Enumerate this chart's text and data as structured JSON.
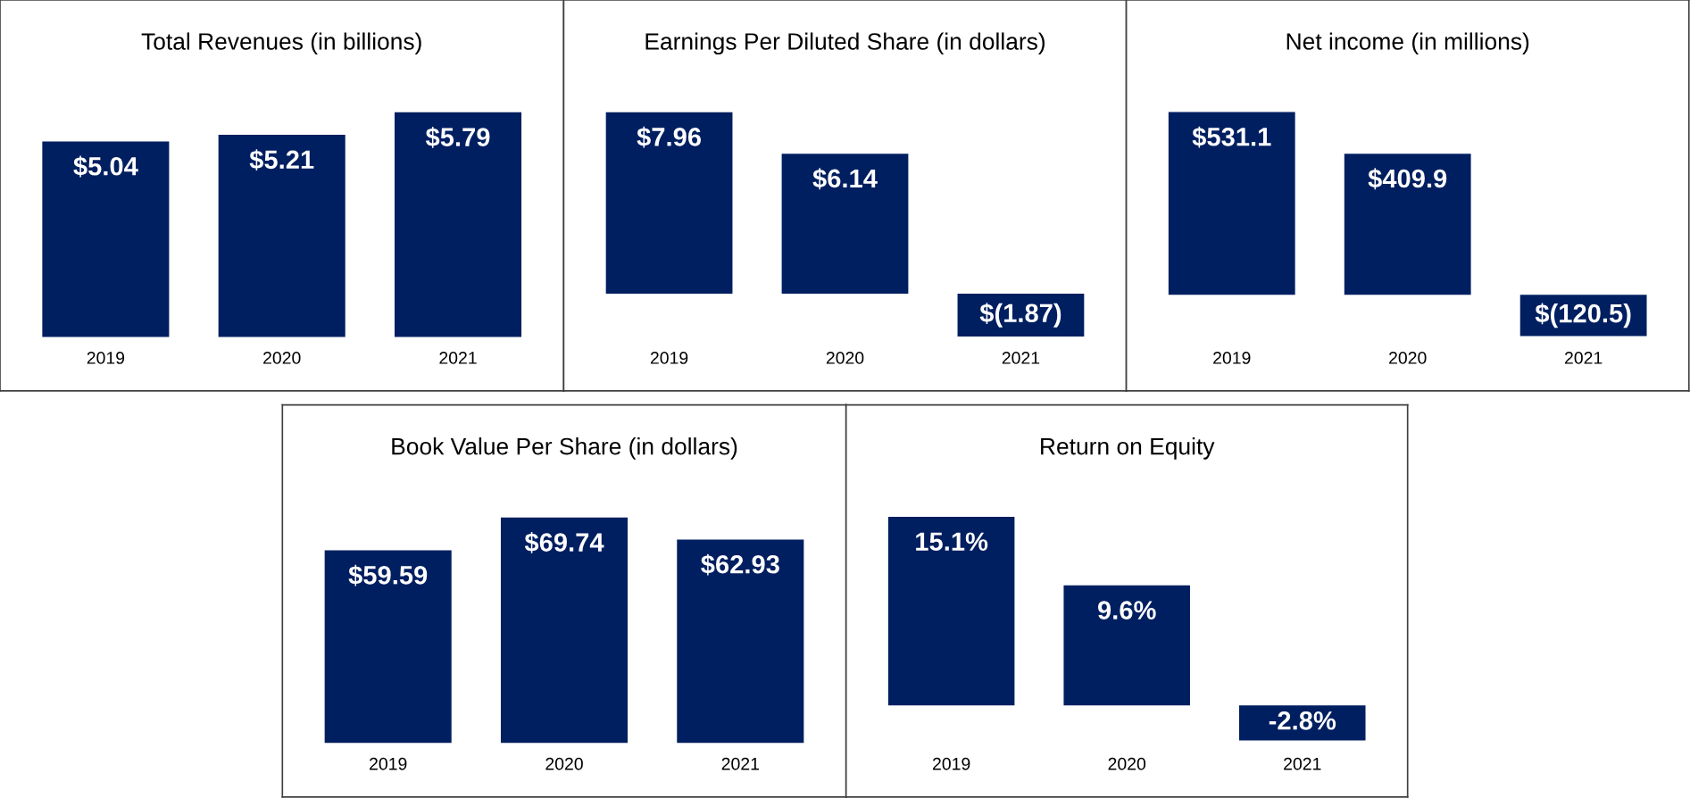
{
  "chart_data": [
    {
      "type": "bar",
      "title": "Total Revenues (in billions)",
      "categories": [
        "2019",
        "2020",
        "2021"
      ],
      "values": [
        5.04,
        5.21,
        5.79
      ],
      "value_labels": [
        "$5.04",
        "$5.21",
        "$5.79"
      ],
      "color": "#001f60"
    },
    {
      "type": "bar",
      "title": "Earnings Per Diluted Share (in dollars)",
      "categories": [
        "2019",
        "2020",
        "2021"
      ],
      "values": [
        7.96,
        6.14,
        -1.87
      ],
      "value_labels": [
        "$7.96",
        "$6.14",
        "$(1.87)"
      ],
      "color": "#001f60"
    },
    {
      "type": "bar",
      "title": "Net income (in millions)",
      "categories": [
        "2019",
        "2020",
        "2021"
      ],
      "values": [
        531.1,
        409.9,
        -120.5
      ],
      "value_labels": [
        "$531.1",
        "$409.9",
        "$(120.5)"
      ],
      "color": "#001f60"
    },
    {
      "type": "bar",
      "title": "Book Value Per Share (in dollars)",
      "categories": [
        "2019",
        "2020",
        "2021"
      ],
      "values": [
        59.59,
        69.74,
        62.93
      ],
      "value_labels": [
        "$59.59",
        "$69.74",
        "$62.93"
      ],
      "color": "#001f60"
    },
    {
      "type": "bar",
      "title": "Return on Equity",
      "categories": [
        "2019",
        "2020",
        "2021"
      ],
      "values": [
        15.1,
        9.6,
        -2.8
      ],
      "value_labels": [
        "15.1%",
        "9.6%",
        "-2.8%"
      ],
      "color": "#001f60"
    }
  ]
}
